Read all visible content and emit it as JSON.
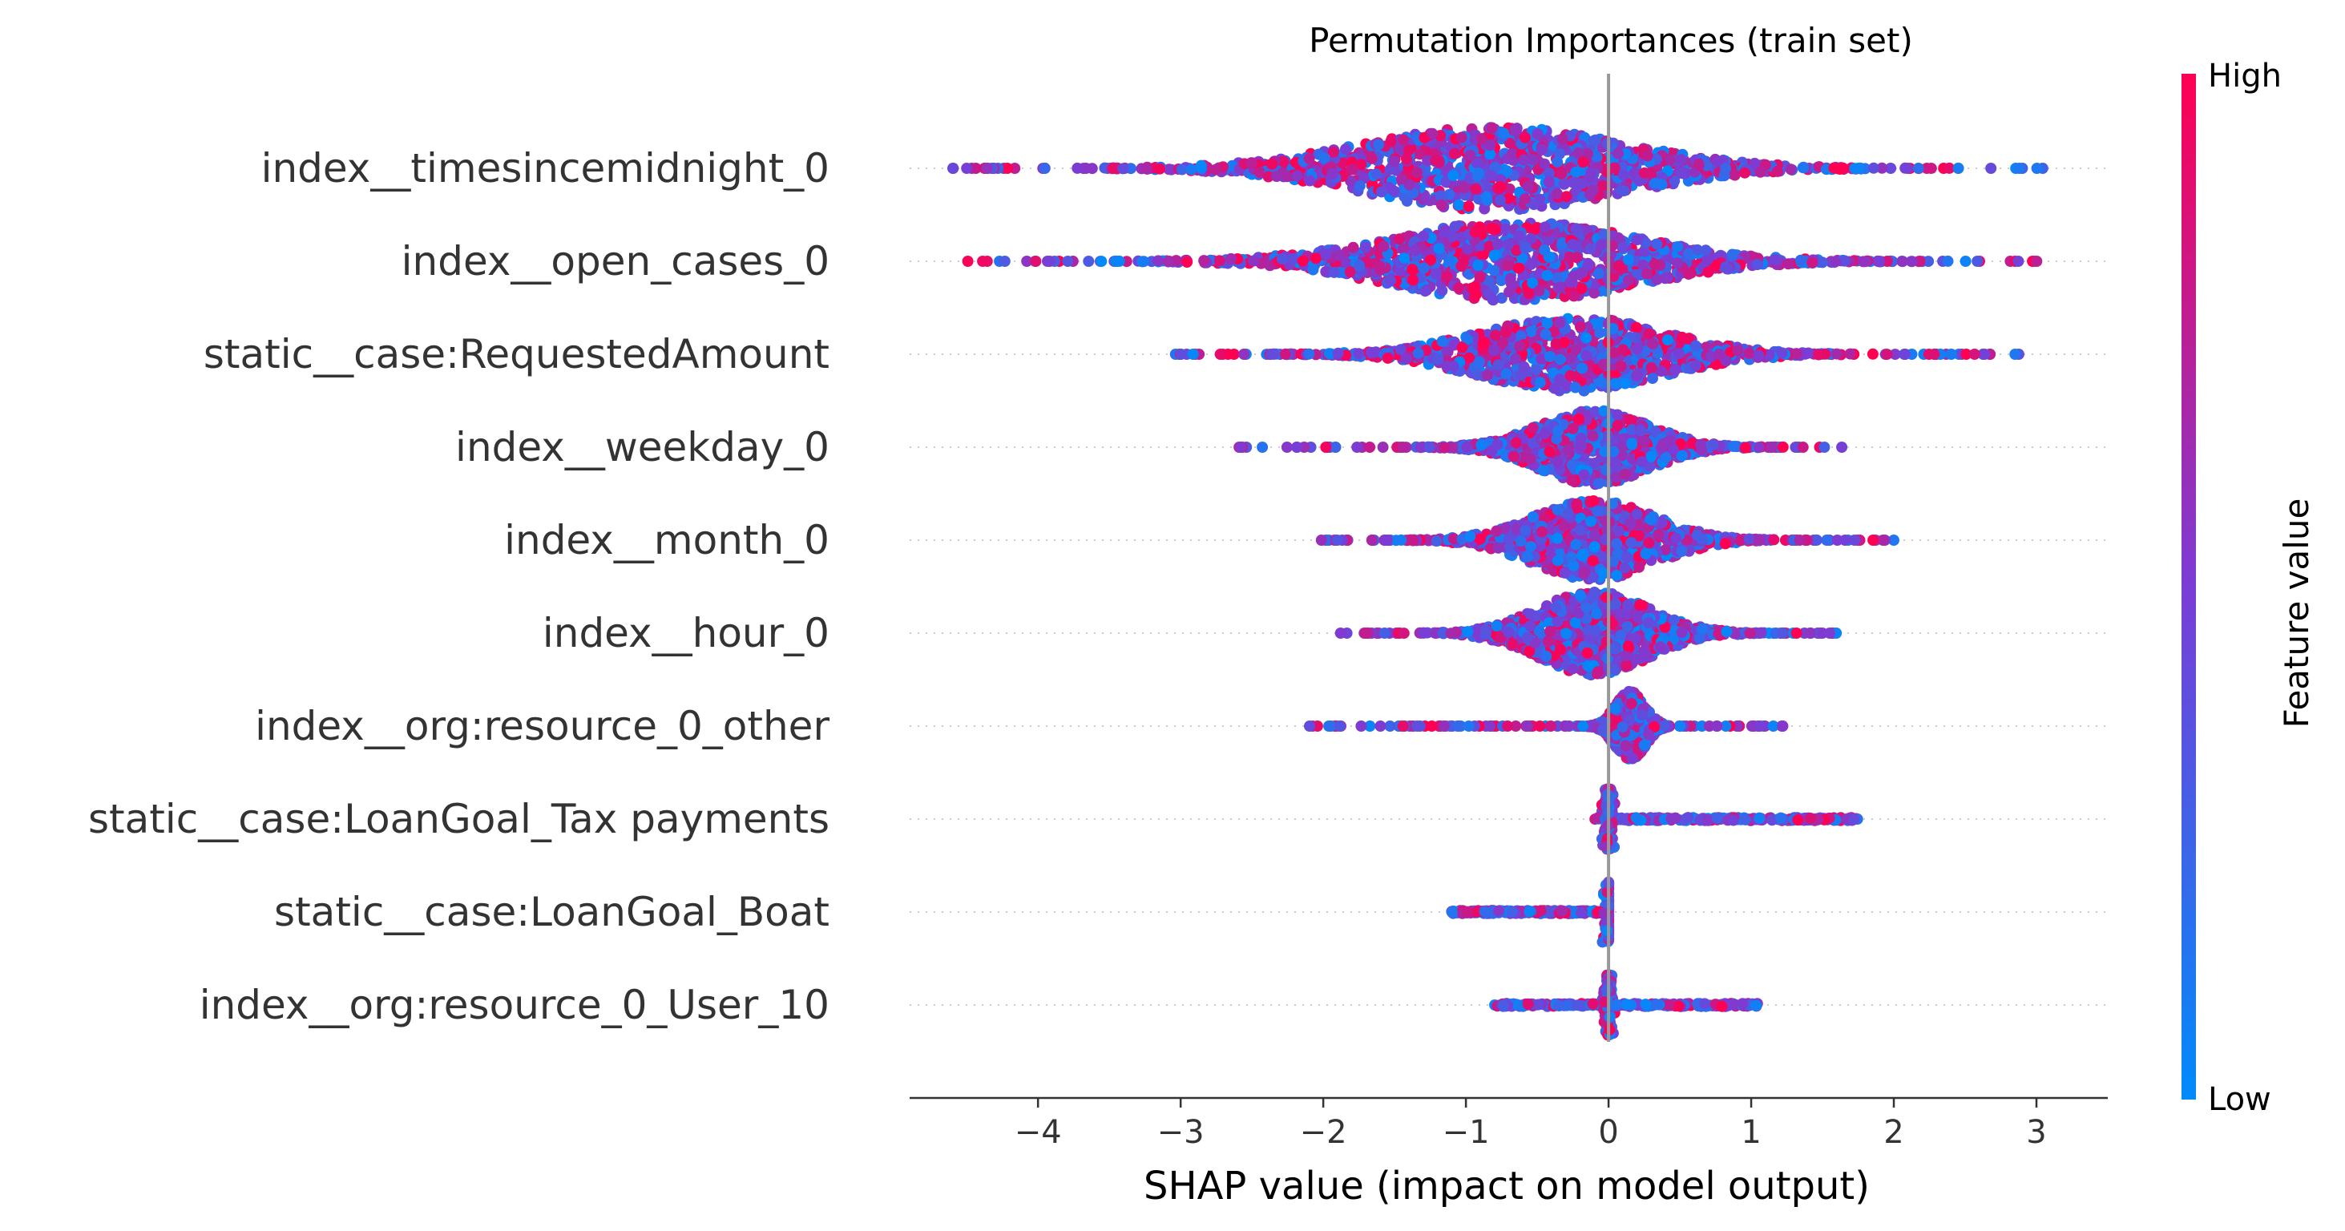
{
  "chart_data": {
    "type": "scatter",
    "subtype": "shap-beeswarm",
    "title": "Permutation Importances (train set)",
    "xlabel": "SHAP value (impact on model output)",
    "xlim": [
      -4.9,
      3.5
    ],
    "xticks": [
      -4,
      -3,
      -2,
      -1,
      0,
      1,
      2,
      3
    ],
    "xtick_labels": [
      "−4",
      "−3",
      "−2",
      "−1",
      "0",
      "1",
      "2",
      "3"
    ],
    "zero_line": true,
    "grid": false,
    "colorbar": {
      "title": "Feature value",
      "high_label": "High",
      "low_label": "Low",
      "high_color": "#ff0052",
      "mid_color": "#7a3dd6",
      "low_color": "#008bfb"
    },
    "features": [
      {
        "name": "index__timesincemidnight_0",
        "min": -4.6,
        "max": 3.1,
        "center": -0.8,
        "spread": 1.05,
        "peak": 0.9,
        "high_bias": 0.5,
        "n": 1100
      },
      {
        "name": "index__open_cases_0",
        "min": -4.5,
        "max": 3.1,
        "center": -0.65,
        "spread": 1.0,
        "peak": 0.85,
        "high_bias": 0.5,
        "n": 1100
      },
      {
        "name": "static__case:RequestedAmount",
        "min": -3.2,
        "max": 2.9,
        "center": -0.25,
        "spread": 0.75,
        "peak": 0.8,
        "high_bias": 0.45,
        "n": 1000
      },
      {
        "name": "index__weekday_0",
        "min": -2.6,
        "max": 1.7,
        "center": -0.1,
        "spread": 0.45,
        "peak": 0.8,
        "high_bias": 0.45,
        "n": 900
      },
      {
        "name": "index__month_0",
        "min": -2.1,
        "max": 2.0,
        "center": -0.1,
        "spread": 0.5,
        "peak": 0.85,
        "high_bias": 0.5,
        "n": 900
      },
      {
        "name": "index__hour_0",
        "min": -1.9,
        "max": 1.6,
        "center": -0.1,
        "spread": 0.45,
        "peak": 0.9,
        "high_bias": 0.45,
        "n": 900
      },
      {
        "name": "index__org:resource_0_other",
        "min": -2.1,
        "max": 1.25,
        "center": 0.15,
        "spread": 0.12,
        "peak": 0.75,
        "high_bias": 0.5,
        "n": 800
      },
      {
        "name": "static__case:LoanGoal_Tax payments",
        "min": -0.1,
        "max": 1.75,
        "center": 0.0,
        "spread": 0.02,
        "peak": 0.65,
        "high_bias": 0.3,
        "n": 500
      },
      {
        "name": "static__case:LoanGoal_Boat",
        "min": -1.1,
        "max": 0.0,
        "center": 0.0,
        "spread": 0.02,
        "peak": 0.65,
        "high_bias": 0.3,
        "n": 400
      },
      {
        "name": "index__org:resource_0_User_10",
        "min": -0.8,
        "max": 1.05,
        "center": 0.0,
        "spread": 0.02,
        "peak": 0.65,
        "high_bias": 0.3,
        "n": 500
      }
    ]
  }
}
